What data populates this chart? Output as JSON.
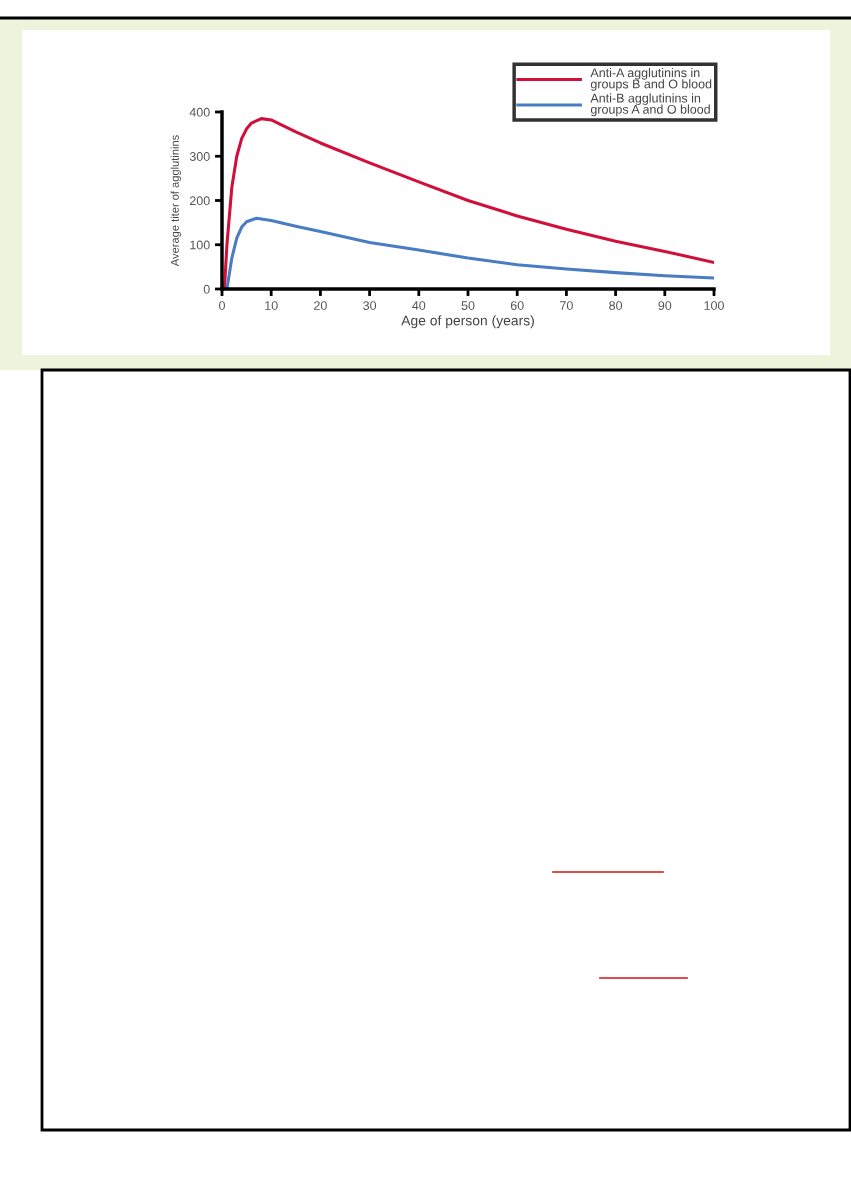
{
  "chart_data": {
    "type": "line",
    "xlabel": "Age of person (years)",
    "ylabel": "Average titer of agglutinins",
    "xlim": [
      0,
      100
    ],
    "xticks": [
      0,
      10,
      20,
      30,
      40,
      50,
      60,
      70,
      80,
      90,
      100
    ],
    "ylim": [
      0,
      400
    ],
    "yticks": [
      0,
      100,
      200,
      300,
      400
    ],
    "grid": false,
    "legend": "top right",
    "marker": "none",
    "line_style": "solid",
    "series": [
      {
        "name": "Anti-A agglutinins in\ngroups B and O blood",
        "color": "#d0103a",
        "x": [
          0.5,
          1,
          2,
          3,
          4,
          5,
          6,
          8,
          10,
          15,
          20,
          30,
          40,
          50,
          60,
          70,
          80,
          90,
          100
        ],
        "values": [
          0,
          100,
          230,
          300,
          340,
          362,
          375,
          385,
          382,
          355,
          330,
          285,
          242,
          200,
          165,
          135,
          108,
          85,
          60
        ]
      },
      {
        "name": "Anti-B agglutinins in\ngroups A and O blood",
        "color": "#4a7cc4",
        "x": [
          1,
          2,
          3,
          4,
          5,
          7,
          10,
          15,
          20,
          30,
          40,
          50,
          60,
          70,
          80,
          90,
          100
        ],
        "values": [
          0,
          70,
          115,
          140,
          152,
          160,
          155,
          142,
          130,
          105,
          88,
          70,
          55,
          45,
          37,
          30,
          25
        ]
      }
    ]
  }
}
